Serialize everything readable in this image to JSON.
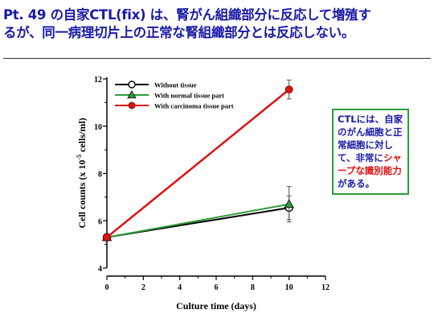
{
  "slide": {
    "title_line1": "Pt. 49 の自家CTL(fix) は、腎がん組織部分に反応して増殖す",
    "title_line2": "るが、同一病理切片上の正常な腎組織部分とは反応しない。"
  },
  "note": {
    "part1": "CTLには、自家のがん細胞と正常細胞に対して、非常に",
    "highlight": "シャープな識別能力",
    "part3": "がある。"
  },
  "colors": {
    "title": "#1a1aa6",
    "without_tissue": "#000000",
    "normal_tissue": "#2e9d3a",
    "carcinoma_tissue": "#e01010",
    "note_border": "#2e9d3a"
  },
  "chart_data": {
    "type": "line",
    "xlabel": "Culture time (days)",
    "ylabel_main": "Cell counts (x 10",
    "ylabel_exp": "-5",
    "ylabel_tail": " cells/ml)",
    "xlim": [
      0,
      12
    ],
    "ylim": [
      4,
      12
    ],
    "x_ticks": [
      "0",
      "2",
      "4",
      "6",
      "8",
      "10",
      "12"
    ],
    "y_ticks": [
      "4",
      "6",
      "8",
      "10",
      "12"
    ],
    "grid": false,
    "legend_position": "top-left",
    "series": [
      {
        "name": "Without tissue",
        "color": "#000000",
        "marker": "circle-open",
        "x": [
          0,
          10
        ],
        "y": [
          5.3,
          6.55
        ],
        "error": [
          0,
          0.5
        ]
      },
      {
        "name": "With normal tissue part",
        "color": "#2e9d3a",
        "marker": "triangle",
        "x": [
          0,
          10
        ],
        "y": [
          5.3,
          6.7
        ],
        "error": [
          0,
          0.75
        ]
      },
      {
        "name": "With carcinoma tissue part",
        "color": "#e01010",
        "marker": "circle-filled",
        "x": [
          0,
          10
        ],
        "y": [
          5.3,
          11.55
        ],
        "error": [
          0,
          0.4
        ]
      }
    ]
  }
}
